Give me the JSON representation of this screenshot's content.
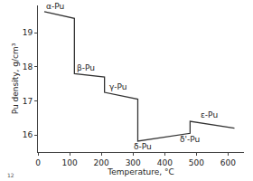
{
  "chart_data": {
    "type": "line",
    "x_label": "Temperature, °C",
    "y_label": "Pu density, g/cm³",
    "x": [
      20,
      115,
      115,
      210,
      210,
      315,
      315,
      450,
      450,
      480,
      480,
      620
    ],
    "values": [
      19.62,
      19.42,
      17.8,
      17.7,
      17.25,
      17.05,
      15.82,
      16.0,
      16.0,
      16.05,
      16.4,
      16.2
    ],
    "color": "#333333",
    "xlim": [
      0,
      650
    ],
    "xticks": [
      0,
      100,
      200,
      300,
      400,
      500,
      600
    ],
    "ylim": [
      15.5,
      19.8
    ],
    "yticks": [
      16,
      17,
      18,
      19
    ],
    "grid": false,
    "annotations": [
      {
        "text": "α-Pu",
        "x": 55,
        "y": 19.78
      },
      {
        "text": "β-Pu",
        "x": 150,
        "y": 17.97
      },
      {
        "text": "γ-Pu",
        "x": 255,
        "y": 17.42
      },
      {
        "text": "δ-Pu",
        "x": 330,
        "y": 15.66
      },
      {
        "text": "δ'-Pu",
        "x": 480,
        "y": 15.86
      },
      {
        "text": "ε-Pu",
        "x": 540,
        "y": 16.58
      }
    ],
    "footnote": "12"
  }
}
